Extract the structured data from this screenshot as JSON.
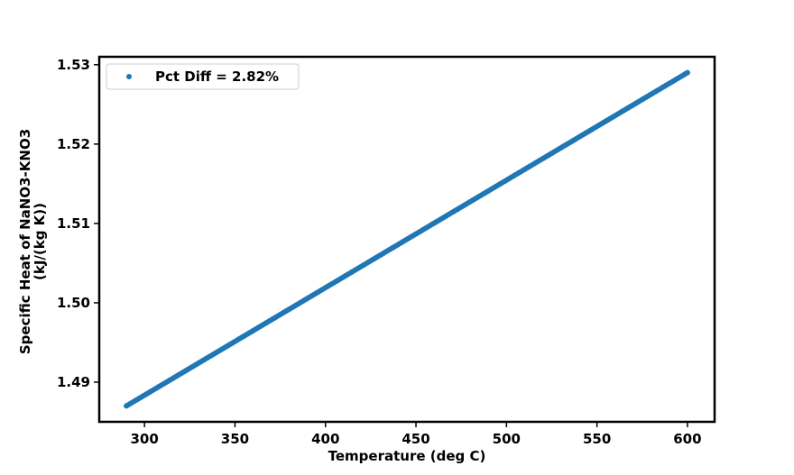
{
  "chart_data": {
    "type": "scatter",
    "xlabel": "Temperature (deg C)",
    "ylabel_lines": [
      "Specific Heat of NaNO3-KNO3",
      "(kJ/(kg K))"
    ],
    "xlim": [
      275,
      615
    ],
    "ylim": [
      1.485,
      1.531
    ],
    "xticks": [
      300,
      350,
      400,
      450,
      500,
      550,
      600
    ],
    "xtick_labels": [
      "300",
      "350",
      "400",
      "450",
      "500",
      "550",
      "600"
    ],
    "yticks": [
      1.49,
      1.5,
      1.51,
      1.52,
      1.53
    ],
    "ytick_labels": [
      "1.49",
      "1.50",
      "1.51",
      "1.52",
      "1.53"
    ],
    "grid": false,
    "legend_position": "upper-left",
    "series": [
      {
        "name": "Pct Diff = 2.82%",
        "color": "#1f77b4",
        "marker": "dot",
        "x_range": [
          290,
          600
        ],
        "y_range": [
          1.487,
          1.529
        ],
        "relation": "linear",
        "points_per_degree": 1
      }
    ]
  }
}
